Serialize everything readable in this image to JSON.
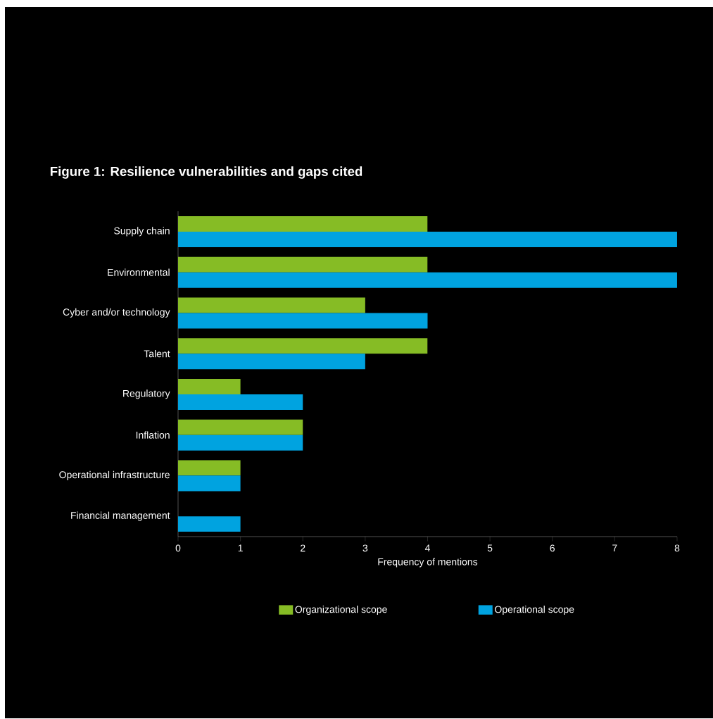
{
  "chart_data": {
    "type": "bar",
    "orientation": "horizontal",
    "title": "Figure 1: Resilience vulnerabilities and gaps cited",
    "xlabel": "Frequency of mentions",
    "categories": [
      "Supply chain",
      "Environmental",
      "Cyber and/or technology",
      "Talent",
      "Regulatory",
      "Inflation",
      "Operational infrastructure",
      "Financial management"
    ],
    "series": [
      {
        "name": "Organizational scope",
        "color": "#86bc25",
        "values": [
          4,
          4,
          3,
          4,
          1,
          2,
          1,
          null
        ]
      },
      {
        "name": "Operational scope",
        "color": "#00a3e0",
        "values": [
          8,
          8,
          4,
          3,
          2,
          2,
          1,
          1
        ]
      }
    ],
    "xlim": [
      0,
      8
    ],
    "xticks": [
      0,
      1,
      2,
      3,
      4,
      5,
      6,
      7,
      8
    ],
    "grid": false,
    "legend": "bottom"
  }
}
